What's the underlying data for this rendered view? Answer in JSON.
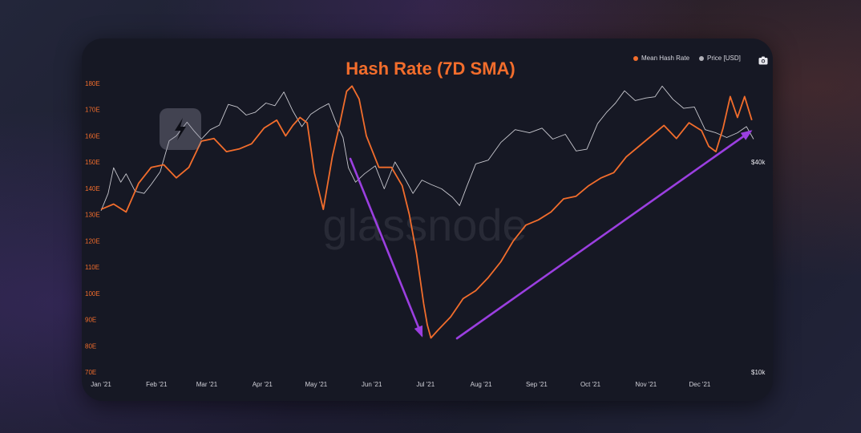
{
  "colors": {
    "hash_rate": "#f26d2c",
    "price": "#c8c8cf",
    "arrow": "#9b3fe0",
    "title": "#f26d2c"
  },
  "icons": {
    "watermark_logo": "lightning-badge-icon",
    "export": "camera-icon"
  },
  "watermark": "glassnode",
  "chart_data": {
    "type": "line",
    "title": "Hash Rate (7D SMA)",
    "xlabel": "",
    "ylabel": "",
    "ylim": [
      70,
      180
    ],
    "y_ticks": [
      "180E",
      "170E",
      "160E",
      "150E",
      "140E",
      "130E",
      "120E",
      "110E",
      "100E",
      "90E",
      "80E",
      "70E"
    ],
    "y2_ticks": [
      "$40k",
      "$10k"
    ],
    "x_ticks": [
      "Jan '21",
      "Feb '21",
      "Mar '21",
      "Apr '21",
      "May '21",
      "Jun '21",
      "Jul '21",
      "Aug '21",
      "Sep '21",
      "Oct '21",
      "Nov '21",
      "Dec '21"
    ],
    "grid": false,
    "legend": "top-right",
    "series": [
      {
        "name": "Mean Hash Rate",
        "unit": "EH/s",
        "x": [
          "2021-01-01",
          "2021-01-08",
          "2021-01-15",
          "2021-01-22",
          "2021-01-29",
          "2021-02-05",
          "2021-02-12",
          "2021-02-19",
          "2021-02-26",
          "2021-03-05",
          "2021-03-12",
          "2021-03-19",
          "2021-03-26",
          "2021-04-02",
          "2021-04-09",
          "2021-04-14",
          "2021-04-18",
          "2021-04-22",
          "2021-04-26",
          "2021-04-30",
          "2021-05-05",
          "2021-05-10",
          "2021-05-14",
          "2021-05-18",
          "2021-05-21",
          "2021-05-25",
          "2021-05-29",
          "2021-06-05",
          "2021-06-12",
          "2021-06-18",
          "2021-06-22",
          "2021-06-26",
          "2021-06-30",
          "2021-07-02",
          "2021-07-04",
          "2021-07-08",
          "2021-07-15",
          "2021-07-22",
          "2021-07-29",
          "2021-08-05",
          "2021-08-12",
          "2021-08-19",
          "2021-08-26",
          "2021-09-02",
          "2021-09-09",
          "2021-09-16",
          "2021-09-23",
          "2021-09-30",
          "2021-10-07",
          "2021-10-14",
          "2021-10-21",
          "2021-10-28",
          "2021-11-04",
          "2021-11-11",
          "2021-11-18",
          "2021-11-25",
          "2021-12-02",
          "2021-12-06",
          "2021-12-10",
          "2021-12-14",
          "2021-12-18",
          "2021-12-22",
          "2021-12-26",
          "2021-12-30"
        ],
        "values": [
          132,
          134,
          131,
          142,
          148,
          149,
          144,
          148,
          158,
          159,
          154,
          155,
          157,
          163,
          166,
          160,
          164,
          167,
          165,
          146,
          132,
          152,
          164,
          177,
          179,
          174,
          160,
          148,
          148,
          141,
          130,
          115,
          96,
          88,
          83,
          86,
          91,
          98,
          101,
          106,
          112,
          120,
          126,
          128,
          131,
          136,
          137,
          141,
          144,
          146,
          152,
          156,
          160,
          164,
          159,
          165,
          162,
          156,
          154,
          163,
          175,
          167,
          175,
          166
        ]
      },
      {
        "name": "Price [USD]",
        "unit": "USD",
        "x": [
          "2021-01-01",
          "2021-01-05",
          "2021-01-08",
          "2021-01-12",
          "2021-01-15",
          "2021-01-20",
          "2021-01-25",
          "2021-01-29",
          "2021-02-03",
          "2021-02-08",
          "2021-02-12",
          "2021-02-18",
          "2021-02-22",
          "2021-02-26",
          "2021-03-03",
          "2021-03-08",
          "2021-03-13",
          "2021-03-18",
          "2021-03-23",
          "2021-03-28",
          "2021-04-03",
          "2021-04-08",
          "2021-04-13",
          "2021-04-18",
          "2021-04-23",
          "2021-04-28",
          "2021-05-03",
          "2021-05-08",
          "2021-05-12",
          "2021-05-16",
          "2021-05-19",
          "2021-05-23",
          "2021-05-28",
          "2021-06-03",
          "2021-06-08",
          "2021-06-14",
          "2021-06-20",
          "2021-06-24",
          "2021-06-29",
          "2021-07-04",
          "2021-07-10",
          "2021-07-16",
          "2021-07-20",
          "2021-07-24",
          "2021-07-29",
          "2021-08-05",
          "2021-08-12",
          "2021-08-20",
          "2021-08-28",
          "2021-09-04",
          "2021-09-10",
          "2021-09-17",
          "2021-09-23",
          "2021-09-29",
          "2021-10-05",
          "2021-10-10",
          "2021-10-15",
          "2021-10-20",
          "2021-10-26",
          "2021-11-01",
          "2021-11-06",
          "2021-11-10",
          "2021-11-16",
          "2021-11-22",
          "2021-11-28",
          "2021-12-04",
          "2021-12-10",
          "2021-12-16",
          "2021-12-22",
          "2021-12-27",
          "2021-12-31"
        ],
        "values": [
          29000,
          32500,
          38500,
          35000,
          37000,
          33000,
          32500,
          34500,
          37500,
          46000,
          47500,
          52000,
          49000,
          46500,
          49500,
          51000,
          58500,
          57500,
          54500,
          55500,
          59000,
          58000,
          63500,
          56000,
          50500,
          54800,
          57000,
          58800,
          52000,
          47000,
          38500,
          35000,
          37000,
          39000,
          33500,
          40000,
          35500,
          32500,
          35500,
          34500,
          33500,
          31700,
          30000,
          34000,
          39500,
          40500,
          45500,
          49500,
          48500,
          50000,
          46500,
          48000,
          43000,
          43500,
          51500,
          55500,
          59000,
          64000,
          60000,
          61000,
          61500,
          66000,
          60500,
          57000,
          57500,
          49500,
          48500,
          47000,
          48500,
          50500,
          46500
        ]
      }
    ]
  }
}
